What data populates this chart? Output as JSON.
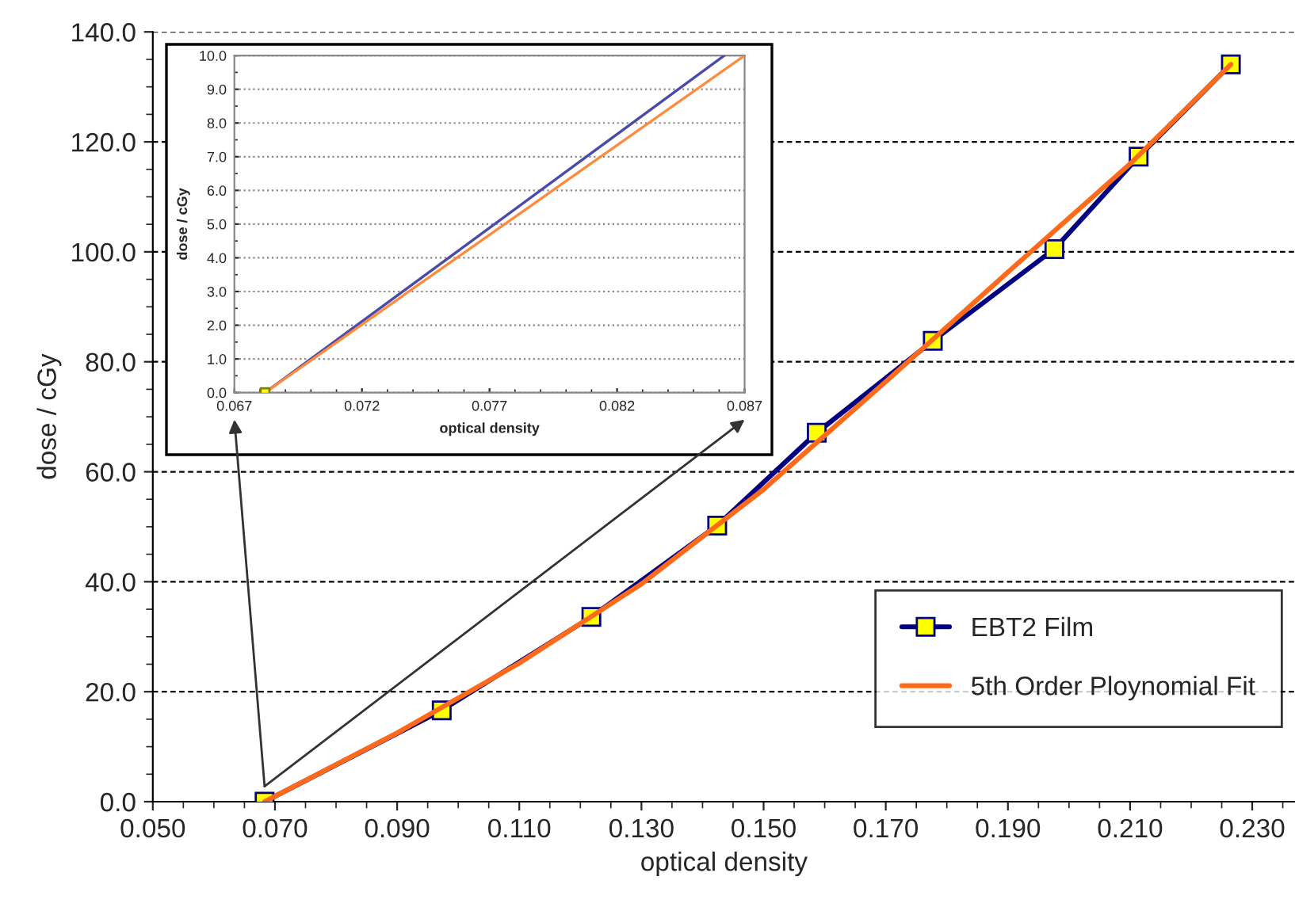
{
  "chart_data": [
    {
      "type": "line",
      "xlabel": "optical density",
      "ylabel": "dose / cGy",
      "xlim": [
        0.05,
        0.237
      ],
      "ylim": [
        0,
        140
      ],
      "xticks": [
        {
          "value": 0.05,
          "label": "0.050"
        },
        {
          "value": 0.07,
          "label": "0.070"
        },
        {
          "value": 0.09,
          "label": "0.090"
        },
        {
          "value": 0.11,
          "label": "0.110"
        },
        {
          "value": 0.13,
          "label": "0.130"
        },
        {
          "value": 0.15,
          "label": "0.150"
        },
        {
          "value": 0.17,
          "label": "0.170"
        },
        {
          "value": 0.19,
          "label": "0.190"
        },
        {
          "value": 0.21,
          "label": "0.210"
        },
        {
          "value": 0.23,
          "label": "0.230"
        }
      ],
      "yticks": [
        {
          "value": 0,
          "label": "0.0"
        },
        {
          "value": 20,
          "label": "20.0"
        },
        {
          "value": 40,
          "label": "40.0"
        },
        {
          "value": 60,
          "label": "60.0"
        },
        {
          "value": 80,
          "label": "80.0"
        },
        {
          "value": 100,
          "label": "100.0"
        },
        {
          "value": 120,
          "label": "120.0"
        },
        {
          "value": 140,
          "label": "140.0"
        }
      ],
      "grid": "y",
      "legend": "bottom right",
      "series": [
        {
          "name": "EBT2 Film",
          "color": "#000080",
          "marker": "square",
          "x": [
            0.0683,
            0.0973,
            0.1218,
            0.1424,
            0.1587,
            0.1777,
            0.1976,
            0.2114,
            0.2265
          ],
          "values": [
            0,
            16.6,
            33.6,
            50.2,
            67.1,
            83.8,
            100.5,
            117.3,
            134.1
          ]
        },
        {
          "name": "5th Order Ploynomial Fit",
          "color": "#ff6a1a",
          "marker": "none",
          "x": [
            0.0683,
            0.09,
            0.11,
            0.13,
            0.15,
            0.17,
            0.19,
            0.21,
            0.2265
          ],
          "values": [
            0,
            12.5,
            25.2,
            39.6,
            56.8,
            76.4,
            96.3,
            116.0,
            134.1
          ]
        }
      ]
    },
    {
      "type": "line",
      "xlabel": "optical density",
      "ylabel": "dose / cGy",
      "xlim": [
        0.067,
        0.087
      ],
      "ylim": [
        0,
        10
      ],
      "xticks": [
        {
          "value": 0.067,
          "label": "0.067"
        },
        {
          "value": 0.072,
          "label": "0.072"
        },
        {
          "value": 0.077,
          "label": "0.077"
        },
        {
          "value": 0.082,
          "label": "0.082"
        },
        {
          "value": 0.087,
          "label": "0.087"
        }
      ],
      "yticks": [
        {
          "value": 0,
          "label": "0.0"
        },
        {
          "value": 1,
          "label": "1.0"
        },
        {
          "value": 2,
          "label": "2.0"
        },
        {
          "value": 3,
          "label": "3.0"
        },
        {
          "value": 4,
          "label": "4.0"
        },
        {
          "value": 5,
          "label": "5.0"
        },
        {
          "value": 6,
          "label": "6.0"
        },
        {
          "value": 7,
          "label": "7.0"
        },
        {
          "value": 8,
          "label": "8.0"
        },
        {
          "value": 9,
          "label": "9.0"
        },
        {
          "value": 10,
          "label": "10.0"
        }
      ],
      "grid": "y",
      "series": [
        {
          "color": "#4a4aaa",
          "marker": "none",
          "x": [
            0.0682,
            0.0862
          ],
          "values": [
            0,
            10
          ]
        },
        {
          "color": "#ff8a3c",
          "marker": "none",
          "x": [
            0.0682,
            0.087
          ],
          "values": [
            0,
            10
          ]
        },
        {
          "type": "scatter",
          "color": "#ffff00",
          "marker": "square",
          "x": [
            0.0682
          ],
          "values": [
            0
          ]
        }
      ]
    }
  ]
}
